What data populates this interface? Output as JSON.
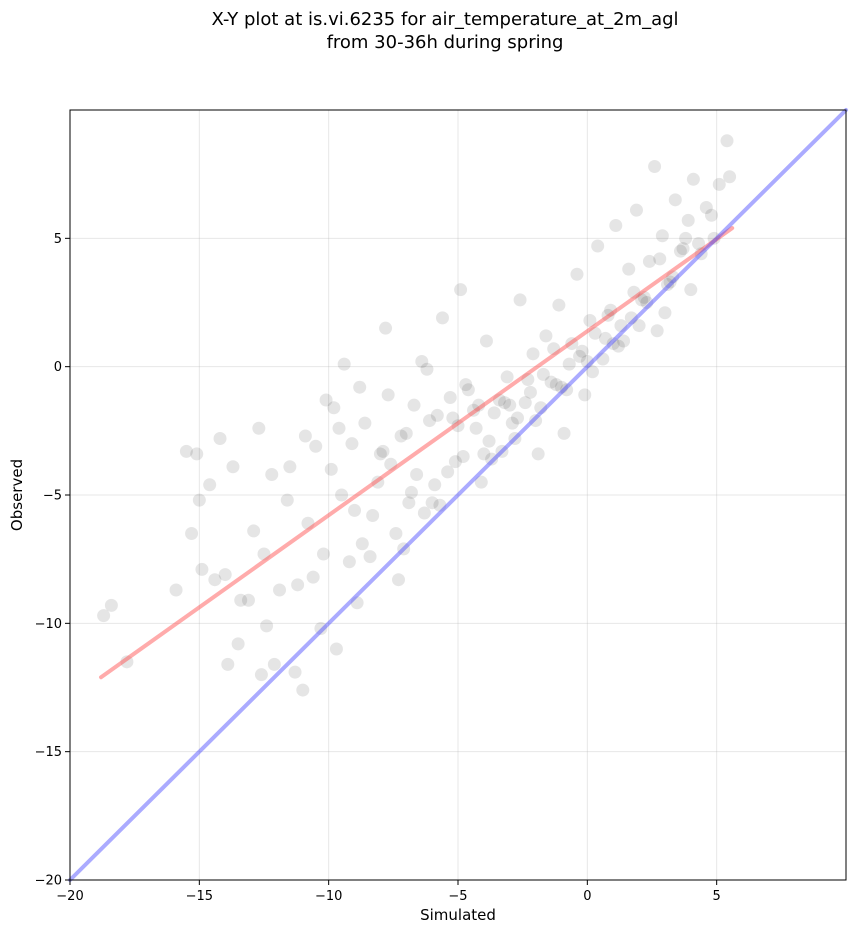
{
  "chart_data": {
    "type": "scatter",
    "title": "X-Y plot at is.vi.6235 for air_temperature_at_2m_agl",
    "subtitle": "from 30-36h during spring",
    "xlabel": "Simulated",
    "ylabel": "Observed",
    "xlim": [
      -20,
      10
    ],
    "ylim": [
      -20,
      10
    ],
    "x_ticks": [
      -20,
      -15,
      -10,
      -5,
      0,
      5
    ],
    "x_tick_labels": [
      "−20",
      "−15",
      "−10",
      "−5",
      "0",
      "5"
    ],
    "y_ticks": [
      -20,
      -15,
      -10,
      -5,
      0,
      5
    ],
    "y_tick_labels": [
      "−20",
      "−15",
      "−10",
      "−5",
      "0",
      "5"
    ],
    "grid": true,
    "series": [
      {
        "kind": "points",
        "color": "#000000",
        "opacity": 0.1,
        "x": [
          -18.7,
          -18.4,
          -17.8,
          -15.9,
          -15.5,
          -15.3,
          -15.1,
          -15.0,
          -14.9,
          -14.6,
          -14.4,
          -14.0,
          -13.9,
          -13.7,
          -13.4,
          -12.9,
          -12.7,
          -12.6,
          -12.4,
          -12.2,
          -11.9,
          -11.6,
          -11.3,
          -11.0,
          -10.8,
          -10.5,
          -10.3,
          -10.1,
          -9.8,
          -9.7,
          -9.5,
          -9.4,
          -9.1,
          -8.9,
          -8.6,
          -8.4,
          -8.1,
          -7.8,
          -7.6,
          -7.4,
          -7.2,
          -6.9,
          -6.7,
          -6.4,
          -6.1,
          -5.9,
          -5.6,
          -5.3,
          -5.1,
          -4.9,
          -4.6,
          -4.3,
          -4.1,
          -3.9,
          -3.6,
          -3.3,
          -3.1,
          -2.9,
          -2.6,
          -2.4,
          -2.1,
          -1.9,
          -1.6,
          -1.4,
          -1.1,
          -0.9,
          -0.6,
          -0.4,
          -0.1,
          0.1,
          0.4,
          0.6,
          0.9,
          1.1,
          1.4,
          1.6,
          1.9,
          2.1,
          2.4,
          2.6,
          2.9,
          3.1,
          3.4,
          3.6,
          3.9,
          4.1,
          4.4,
          4.6,
          4.9,
          5.1,
          5.4,
          5.5,
          -14.2,
          -13.1,
          -12.5,
          -11.2,
          -10.9,
          -9.9,
          -9.2,
          -8.8,
          -8.3,
          -7.7,
          -7.1,
          -6.6,
          -6.2,
          -5.7,
          -5.2,
          -4.7,
          -4.2,
          -3.7,
          -3.2,
          -2.7,
          -2.2,
          -1.7,
          -1.2,
          -0.7,
          -0.2,
          0.3,
          0.8,
          1.3,
          1.8,
          2.3,
          2.8,
          3.3,
          3.8,
          4.3,
          4.8,
          -13.5,
          -12.1,
          -11.5,
          -10.6,
          -9.6,
          -8.7,
          -7.9,
          -7.3,
          -6.8,
          -6.3,
          -5.8,
          -5.4,
          -4.8,
          -4.4,
          -3.8,
          -3.4,
          -2.8,
          -2.3,
          -1.8,
          -1.3,
          -0.8,
          -0.3,
          0.2,
          0.7,
          1.2,
          1.7,
          2.2,
          2.7,
          3.2,
          3.7,
          -10.2,
          -9.0,
          -8.0,
          -7.0,
          -6.0,
          -5.0,
          -4.0,
          -3.0,
          -2.0,
          -1.0,
          0.0,
          1.0,
          2.0,
          3.0,
          4.0
        ],
        "y": [
          -9.7,
          -9.3,
          -11.5,
          -8.7,
          -3.3,
          -6.5,
          -3.4,
          -5.2,
          -7.9,
          -4.6,
          -8.3,
          -8.1,
          -11.6,
          -3.9,
          -9.1,
          -6.4,
          -2.4,
          -12.0,
          -10.1,
          -4.2,
          -8.7,
          -5.2,
          -11.9,
          -12.6,
          -6.1,
          -3.1,
          -10.2,
          -1.3,
          -1.6,
          -11.0,
          -5.0,
          0.1,
          -3.0,
          -9.2,
          -2.2,
          -7.4,
          -4.5,
          1.5,
          -3.8,
          -6.5,
          -2.7,
          -5.3,
          -1.5,
          0.2,
          -2.1,
          -4.6,
          1.9,
          -1.2,
          -3.7,
          3.0,
          -0.9,
          -2.4,
          -4.5,
          1.0,
          -1.8,
          -3.3,
          -0.4,
          -2.2,
          2.6,
          -1.4,
          0.5,
          -3.4,
          1.2,
          -0.6,
          2.4,
          -2.6,
          0.9,
          3.6,
          -1.1,
          1.8,
          4.7,
          0.3,
          2.2,
          5.5,
          1.0,
          3.8,
          6.1,
          2.6,
          4.1,
          7.8,
          5.1,
          3.2,
          6.5,
          4.5,
          5.7,
          7.3,
          4.4,
          6.2,
          5.0,
          7.1,
          8.8,
          7.4,
          -2.8,
          -9.1,
          -7.3,
          -8.5,
          -2.7,
          -4.0,
          -7.6,
          -0.8,
          -5.8,
          -1.1,
          -7.1,
          -4.2,
          -0.1,
          -5.4,
          -2.0,
          -0.7,
          -1.5,
          -3.6,
          -1.4,
          -2.0,
          -1.0,
          -0.3,
          -0.7,
          0.1,
          0.6,
          1.3,
          2.0,
          1.6,
          2.9,
          2.5,
          4.2,
          3.5,
          5.0,
          4.8,
          5.9,
          -10.8,
          -11.6,
          -3.9,
          -8.2,
          -2.4,
          -6.9,
          -3.3,
          -8.3,
          -4.9,
          -5.7,
          -1.9,
          -4.1,
          -3.5,
          -1.7,
          -2.9,
          -1.3,
          -2.8,
          -0.5,
          -1.6,
          0.7,
          -0.9,
          0.4,
          -0.2,
          1.1,
          0.8,
          1.9,
          2.7,
          1.4,
          3.3,
          4.6,
          -7.3,
          -5.6,
          -3.4,
          -2.6,
          -5.3,
          -2.3,
          -3.4,
          -1.5,
          -2.1,
          -0.8,
          0.2,
          0.9,
          1.6,
          2.1,
          3.0
        ]
      },
      {
        "kind": "line",
        "name": "fit",
        "color": "#ff4444",
        "x": [
          -18.8,
          5.6
        ],
        "y": [
          -12.1,
          5.4
        ]
      },
      {
        "kind": "line",
        "name": "1:1",
        "color": "#4444ff",
        "x": [
          -20,
          10
        ],
        "y": [
          -20,
          10
        ]
      }
    ]
  }
}
